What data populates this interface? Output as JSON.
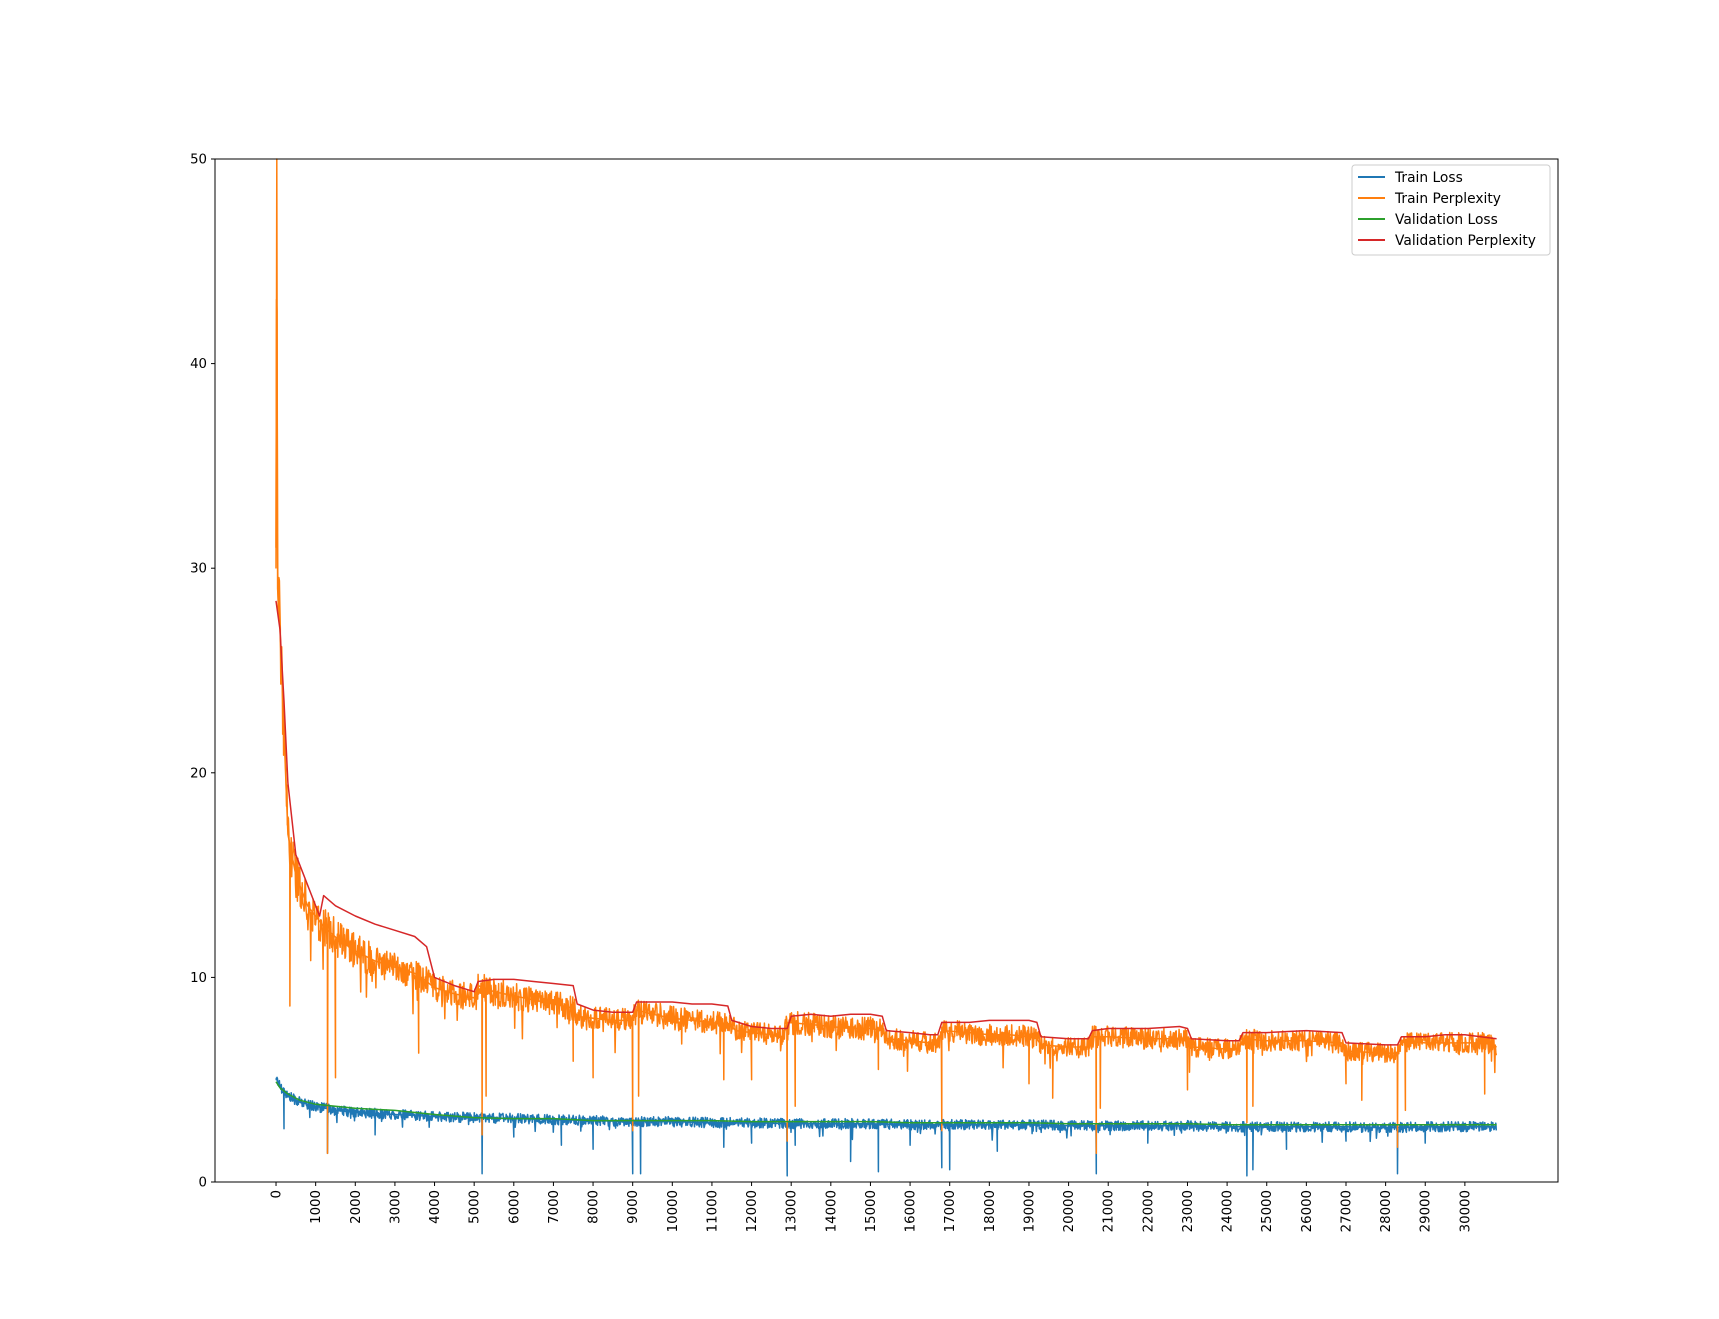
{
  "chart_data": {
    "type": "line",
    "title": "",
    "xlabel": "",
    "ylabel": "",
    "xlim": [
      -1540,
      32350
    ],
    "ylim": [
      0,
      50
    ],
    "xticks": [
      0,
      1000,
      2000,
      3000,
      4000,
      5000,
      6000,
      7000,
      8000,
      9000,
      10000,
      11000,
      12000,
      13000,
      14000,
      15000,
      16000,
      17000,
      18000,
      19000,
      20000,
      21000,
      22000,
      23000,
      24000,
      25000,
      26000,
      27000,
      28000,
      29000,
      30000
    ],
    "xtick_labels": [
      "0",
      "1000",
      "2000",
      "3000",
      "4000",
      "5000",
      "6000",
      "7000",
      "8000",
      "9000",
      "10000",
      "11000",
      "12000",
      "13000",
      "14000",
      "15000",
      "16000",
      "17000",
      "18000",
      "19000",
      "20000",
      "21000",
      "22000",
      "23000",
      "24000",
      "25000",
      "26000",
      "27000",
      "28000",
      "29000",
      "30000"
    ],
    "xtick_rotation": 90,
    "yticks": [
      0,
      10,
      20,
      30,
      40,
      50
    ],
    "ytick_labels": [
      "0",
      "10",
      "20",
      "30",
      "40",
      "50"
    ],
    "grid": false,
    "legend": {
      "position": "top-right"
    },
    "series": [
      {
        "name": "Train Loss",
        "color": "#1f77b4",
        "x": [
          0,
          100,
          300,
          600,
          1000,
          1500,
          2000,
          3000,
          4000,
          5000,
          6000,
          7000,
          8000,
          9000,
          10000,
          11000,
          12000,
          13000,
          14000,
          15000,
          16000,
          17000,
          18000,
          19000,
          20000,
          21000,
          22000,
          23000,
          24000,
          25000,
          26000,
          27000,
          28000,
          29000,
          30000,
          30800
        ],
        "y": [
          5.1,
          4.7,
          4.2,
          3.9,
          3.7,
          3.5,
          3.4,
          3.3,
          3.2,
          3.15,
          3.1,
          3.05,
          3.0,
          2.95,
          2.95,
          2.9,
          2.9,
          2.85,
          2.85,
          2.85,
          2.8,
          2.8,
          2.8,
          2.8,
          2.75,
          2.75,
          2.75,
          2.75,
          2.7,
          2.7,
          2.7,
          2.7,
          2.65,
          2.7,
          2.7,
          2.7
        ],
        "noise": 0.25
      },
      {
        "name": "Train Perplexity",
        "color": "#ff7f0e",
        "x": [
          0,
          20,
          40,
          100,
          200,
          300,
          500,
          800,
          1200,
          1600,
          2000,
          2500,
          3000,
          3500,
          3800,
          4000,
          4500,
          5000,
          5100,
          5500,
          6000,
          6500,
          7000,
          7500,
          7600,
          8000,
          8500,
          9000,
          9100,
          9500,
          10000,
          10500,
          11000,
          11500,
          11600,
          12000,
          12500,
          12800,
          12900,
          13500,
          14000,
          14500,
          15000,
          15300,
          15400,
          16000,
          16500,
          16700,
          16800,
          17500,
          18000,
          18500,
          19000,
          19200,
          19300,
          20000,
          20500,
          20600,
          21000,
          22000,
          23000,
          23100,
          24000,
          24300,
          24400,
          25000,
          26000,
          26900,
          27000,
          28000,
          28300,
          28400,
          29000,
          30000,
          30500,
          30800
        ],
        "y": [
          31,
          50,
          29,
          27,
          22,
          17,
          15,
          13.5,
          12.5,
          11.8,
          11.3,
          10.8,
          10.5,
          10.2,
          9.8,
          9.5,
          9.2,
          9.0,
          9.6,
          9.3,
          9.1,
          8.9,
          8.7,
          8.5,
          8.1,
          8.0,
          7.9,
          7.9,
          8.4,
          8.2,
          8.0,
          7.9,
          7.8,
          7.6,
          7.4,
          7.3,
          7.2,
          7.1,
          7.8,
          7.7,
          7.6,
          7.5,
          7.5,
          7.4,
          7.0,
          6.9,
          6.8,
          6.8,
          7.4,
          7.3,
          7.2,
          7.2,
          7.1,
          7.0,
          6.7,
          6.6,
          6.6,
          7.1,
          7.1,
          7.0,
          7.0,
          6.6,
          6.5,
          6.5,
          7.0,
          6.9,
          6.9,
          6.8,
          6.4,
          6.3,
          6.3,
          6.9,
          6.8,
          6.8,
          6.8,
          6.6
        ],
        "noise": 0.6
      },
      {
        "name": "Validation Loss",
        "color": "#2ca02c",
        "x": [
          0,
          100,
          300,
          600,
          1000,
          1500,
          2000,
          3000,
          4000,
          5000,
          6000,
          7000,
          8000,
          9000,
          10000,
          11000,
          12000,
          13000,
          14000,
          15000,
          16000,
          17000,
          18000,
          19000,
          20000,
          21000,
          22000,
          23000,
          24000,
          25000,
          26000,
          27000,
          28000,
          29000,
          30000,
          30800
        ],
        "y": [
          4.9,
          4.6,
          4.3,
          4.0,
          3.8,
          3.7,
          3.6,
          3.5,
          3.3,
          3.15,
          3.1,
          3.1,
          3.0,
          3.0,
          3.0,
          3.0,
          2.95,
          2.95,
          2.95,
          2.95,
          2.9,
          2.9,
          2.9,
          2.9,
          2.85,
          2.85,
          2.85,
          2.85,
          2.8,
          2.8,
          2.8,
          2.8,
          2.8,
          2.8,
          2.8,
          2.8
        ],
        "noise": 0
      },
      {
        "name": "Validation Perplexity",
        "color": "#d62728",
        "x": [
          0,
          100,
          200,
          300,
          500,
          800,
          1100,
          1200,
          1500,
          2000,
          2500,
          3000,
          3500,
          3800,
          4000,
          4500,
          5000,
          5100,
          5500,
          6000,
          6500,
          7000,
          7500,
          7600,
          8000,
          8500,
          9000,
          9100,
          9500,
          10000,
          10500,
          11000,
          11400,
          11500,
          12000,
          12500,
          12900,
          13000,
          13500,
          14000,
          14500,
          15000,
          15300,
          15400,
          16000,
          16500,
          16700,
          16800,
          17500,
          18000,
          18500,
          19000,
          19200,
          19300,
          20000,
          20500,
          20600,
          21000,
          22000,
          22800,
          23000,
          23100,
          24000,
          24300,
          24400,
          25000,
          26000,
          26900,
          27000,
          28000,
          28300,
          28400,
          29000,
          29500,
          30000,
          30800
        ],
        "y": [
          28.4,
          27,
          23.5,
          19.5,
          16,
          14.5,
          13,
          14,
          13.5,
          13.0,
          12.6,
          12.3,
          12.0,
          11.5,
          10.0,
          9.6,
          9.3,
          9.8,
          9.9,
          9.9,
          9.8,
          9.7,
          9.6,
          8.7,
          8.4,
          8.3,
          8.3,
          8.8,
          8.8,
          8.8,
          8.7,
          8.7,
          8.6,
          7.9,
          7.6,
          7.5,
          7.5,
          8.1,
          8.2,
          8.1,
          8.2,
          8.2,
          8.1,
          7.4,
          7.3,
          7.2,
          7.2,
          7.8,
          7.8,
          7.9,
          7.9,
          7.9,
          7.8,
          7.1,
          7.0,
          7.0,
          7.4,
          7.5,
          7.5,
          7.6,
          7.5,
          7.0,
          6.9,
          6.9,
          7.3,
          7.3,
          7.4,
          7.3,
          6.8,
          6.7,
          6.7,
          7.1,
          7.1,
          7.2,
          7.2,
          7.0
        ],
        "noise": 0
      }
    ],
    "spikes": {
      "Train Perplexity": [
        [
          350,
          8.6
        ],
        [
          1500,
          5.1
        ],
        [
          1300,
          1.4
        ],
        [
          3600,
          6.3
        ],
        [
          5200,
          2.3
        ],
        [
          5300,
          4.2
        ],
        [
          7500,
          5.9
        ],
        [
          8000,
          5.1
        ],
        [
          9000,
          2.5
        ],
        [
          9150,
          4.2
        ],
        [
          11300,
          5.0
        ],
        [
          12000,
          5.0
        ],
        [
          12900,
          2.0
        ],
        [
          13100,
          3.7
        ],
        [
          15200,
          5.5
        ],
        [
          16800,
          2.5
        ],
        [
          19000,
          4.8
        ],
        [
          19600,
          4.1
        ],
        [
          20700,
          1.4
        ],
        [
          20800,
          3.6
        ],
        [
          23000,
          4.5
        ],
        [
          24500,
          2.9
        ],
        [
          24650,
          3.7
        ],
        [
          27000,
          4.8
        ],
        [
          27400,
          4.0
        ],
        [
          28300,
          1.7
        ],
        [
          28500,
          3.5
        ],
        [
          30500,
          4.3
        ],
        [
          30800,
          5.3
        ]
      ],
      "Train Loss": [
        [
          200,
          2.6
        ],
        [
          1300,
          1.4
        ],
        [
          2500,
          2.3
        ],
        [
          5200,
          0.4
        ],
        [
          6000,
          2.2
        ],
        [
          7200,
          1.8
        ],
        [
          8000,
          1.6
        ],
        [
          9000,
          0.4
        ],
        [
          9200,
          0.4
        ],
        [
          11300,
          1.7
        ],
        [
          12000,
          1.9
        ],
        [
          12900,
          0.3
        ],
        [
          13100,
          1.8
        ],
        [
          14500,
          1.0
        ],
        [
          15200,
          0.5
        ],
        [
          16000,
          1.8
        ],
        [
          16800,
          0.7
        ],
        [
          17000,
          0.6
        ],
        [
          18200,
          1.5
        ],
        [
          20700,
          0.4
        ],
        [
          22000,
          1.9
        ],
        [
          24500,
          0.3
        ],
        [
          24650,
          0.6
        ],
        [
          25500,
          1.6
        ],
        [
          27000,
          2.0
        ],
        [
          28300,
          0.4
        ],
        [
          29000,
          1.9
        ]
      ]
    }
  }
}
